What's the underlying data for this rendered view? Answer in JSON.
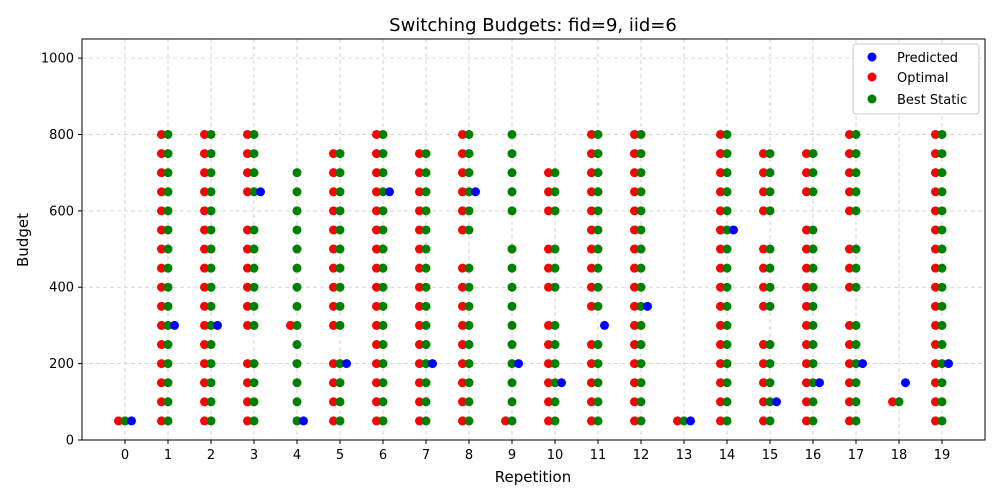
{
  "chart_data": {
    "type": "scatter",
    "title": "Switching Budgets: fid=9, iid=6",
    "xlabel": "Repetition",
    "ylabel": "Budget",
    "xlim": [
      -1,
      20
    ],
    "ylim": [
      0,
      1050
    ],
    "x_ticks": [
      "0",
      "1",
      "2",
      "3",
      "4",
      "5",
      "6",
      "7",
      "8",
      "9",
      "10",
      "11",
      "12",
      "13",
      "14",
      "15",
      "16",
      "17",
      "18",
      "19"
    ],
    "y_ticks": [
      "0",
      "200",
      "400",
      "600",
      "800",
      "1000"
    ],
    "grid": true,
    "legend_position": "top-right",
    "series": [
      {
        "name": "Predicted",
        "color": "#0000ff",
        "points": [
          [
            0,
            50
          ],
          [
            1,
            300
          ],
          [
            2,
            300
          ],
          [
            3,
            650
          ],
          [
            4,
            50
          ],
          [
            5,
            200
          ],
          [
            6,
            650
          ],
          [
            7,
            200
          ],
          [
            8,
            650
          ],
          [
            9,
            200
          ],
          [
            10,
            150
          ],
          [
            11,
            300
          ],
          [
            12,
            350
          ],
          [
            13,
            50
          ],
          [
            14,
            550
          ],
          [
            15,
            100
          ],
          [
            16,
            150
          ],
          [
            17,
            200
          ],
          [
            18,
            150
          ],
          [
            19,
            200
          ]
        ]
      },
      {
        "name": "Optimal",
        "color": "#ff0000",
        "repetitions": [
          {
            "rep": 0,
            "values": [
              50
            ]
          },
          {
            "rep": 1,
            "values": [
              50,
              100,
              150,
              200,
              250,
              300,
              350,
              400,
              450,
              500,
              550,
              600,
              650,
              700,
              750,
              800
            ]
          },
          {
            "rep": 2,
            "values": [
              50,
              100,
              150,
              200,
              250,
              300,
              350,
              400,
              450,
              500,
              550,
              600,
              650,
              700,
              750,
              800
            ]
          },
          {
            "rep": 3,
            "values": [
              50,
              100,
              150,
              200,
              300,
              350,
              400,
              450,
              500,
              550,
              650,
              700,
              750,
              800
            ]
          },
          {
            "rep": 4,
            "values": [
              300
            ]
          },
          {
            "rep": 5,
            "values": [
              50,
              100,
              150,
              200,
              300,
              350,
              400,
              450,
              500,
              550,
              600,
              650,
              700,
              750
            ]
          },
          {
            "rep": 6,
            "values": [
              50,
              100,
              150,
              200,
              250,
              300,
              350,
              400,
              450,
              500,
              550,
              600,
              650,
              700,
              750,
              800
            ]
          },
          {
            "rep": 7,
            "values": [
              50,
              100,
              150,
              200,
              250,
              300,
              350,
              400,
              450,
              500,
              550,
              600,
              650,
              700,
              750
            ]
          },
          {
            "rep": 8,
            "values": [
              50,
              100,
              150,
              200,
              250,
              300,
              350,
              400,
              450,
              550,
              600,
              650,
              700,
              750,
              800
            ]
          },
          {
            "rep": 9,
            "values": [
              50
            ]
          },
          {
            "rep": 10,
            "values": [
              50,
              100,
              150,
              200,
              250,
              300,
              400,
              450,
              500,
              600,
              650,
              700
            ]
          },
          {
            "rep": 11,
            "values": [
              50,
              100,
              150,
              200,
              250,
              350,
              400,
              450,
              500,
              550,
              600,
              650,
              700,
              750,
              800
            ]
          },
          {
            "rep": 12,
            "values": [
              50,
              100,
              150,
              200,
              250,
              300,
              350,
              400,
              450,
              500,
              550,
              600,
              650,
              700,
              750,
              800
            ]
          },
          {
            "rep": 13,
            "values": [
              50
            ]
          },
          {
            "rep": 14,
            "values": [
              50,
              100,
              150,
              200,
              250,
              300,
              350,
              400,
              450,
              500,
              550,
              600,
              650,
              700,
              750,
              800
            ]
          },
          {
            "rep": 15,
            "values": [
              50,
              100,
              150,
              200,
              250,
              350,
              400,
              450,
              500,
              600,
              650,
              700,
              750
            ]
          },
          {
            "rep": 16,
            "values": [
              50,
              100,
              150,
              200,
              250,
              300,
              350,
              400,
              450,
              500,
              550,
              650,
              700,
              750
            ]
          },
          {
            "rep": 17,
            "values": [
              50,
              100,
              150,
              200,
              250,
              300,
              400,
              450,
              500,
              600,
              650,
              700,
              750,
              800
            ]
          },
          {
            "rep": 18,
            "values": [
              100
            ]
          },
          {
            "rep": 19,
            "values": [
              50,
              100,
              150,
              200,
              250,
              300,
              350,
              400,
              450,
              500,
              550,
              600,
              650,
              700,
              750,
              800
            ]
          }
        ]
      },
      {
        "name": "Best Static",
        "color": "#008000",
        "repetitions": [
          {
            "rep": 0,
            "values": [
              50
            ]
          },
          {
            "rep": 1,
            "values": [
              50,
              100,
              150,
              200,
              250,
              300,
              350,
              400,
              450,
              500,
              550,
              600,
              650,
              700,
              750,
              800
            ]
          },
          {
            "rep": 2,
            "values": [
              50,
              100,
              150,
              200,
              250,
              300,
              350,
              400,
              450,
              500,
              550,
              600,
              650,
              700,
              750,
              800
            ]
          },
          {
            "rep": 3,
            "values": [
              50,
              100,
              150,
              200,
              300,
              350,
              400,
              450,
              500,
              550,
              650,
              700,
              750,
              800
            ]
          },
          {
            "rep": 4,
            "values": [
              50,
              100,
              150,
              200,
              250,
              300,
              350,
              400,
              450,
              500,
              550,
              600,
              650,
              700
            ]
          },
          {
            "rep": 5,
            "values": [
              50,
              100,
              150,
              200,
              300,
              350,
              400,
              450,
              500,
              550,
              600,
              650,
              700,
              750
            ]
          },
          {
            "rep": 6,
            "values": [
              50,
              100,
              150,
              200,
              250,
              300,
              350,
              400,
              450,
              500,
              550,
              600,
              650,
              700,
              750,
              800
            ]
          },
          {
            "rep": 7,
            "values": [
              50,
              100,
              150,
              200,
              250,
              300,
              350,
              400,
              450,
              500,
              550,
              600,
              650,
              700,
              750
            ]
          },
          {
            "rep": 8,
            "values": [
              50,
              100,
              150,
              200,
              250,
              300,
              350,
              400,
              450,
              550,
              600,
              650,
              700,
              750,
              800
            ]
          },
          {
            "rep": 9,
            "values": [
              50,
              100,
              150,
              200,
              250,
              300,
              350,
              400,
              450,
              500,
              600,
              650,
              700,
              750,
              800
            ]
          },
          {
            "rep": 10,
            "values": [
              50,
              100,
              150,
              200,
              250,
              300,
              400,
              450,
              500,
              600,
              650,
              700
            ]
          },
          {
            "rep": 11,
            "values": [
              50,
              100,
              150,
              200,
              250,
              350,
              400,
              450,
              500,
              550,
              600,
              650,
              700,
              750,
              800
            ]
          },
          {
            "rep": 12,
            "values": [
              50,
              100,
              150,
              200,
              250,
              300,
              350,
              400,
              450,
              500,
              550,
              600,
              650,
              700,
              750,
              800
            ]
          },
          {
            "rep": 13,
            "values": [
              50
            ]
          },
          {
            "rep": 14,
            "values": [
              50,
              100,
              150,
              200,
              250,
              300,
              350,
              400,
              450,
              500,
              550,
              600,
              650,
              700,
              750,
              800
            ]
          },
          {
            "rep": 15,
            "values": [
              50,
              100,
              150,
              200,
              250,
              350,
              400,
              450,
              500,
              600,
              650,
              700,
              750
            ]
          },
          {
            "rep": 16,
            "values": [
              50,
              100,
              150,
              200,
              250,
              300,
              350,
              400,
              450,
              500,
              550,
              650,
              700,
              750
            ]
          },
          {
            "rep": 17,
            "values": [
              50,
              100,
              150,
              200,
              250,
              300,
              400,
              450,
              500,
              600,
              650,
              700,
              750,
              800
            ]
          },
          {
            "rep": 18,
            "values": [
              100
            ]
          },
          {
            "rep": 19,
            "values": [
              50,
              100,
              150,
              200,
              250,
              300,
              350,
              400,
              450,
              500,
              550,
              600,
              650,
              700,
              750,
              800
            ]
          }
        ]
      }
    ]
  }
}
